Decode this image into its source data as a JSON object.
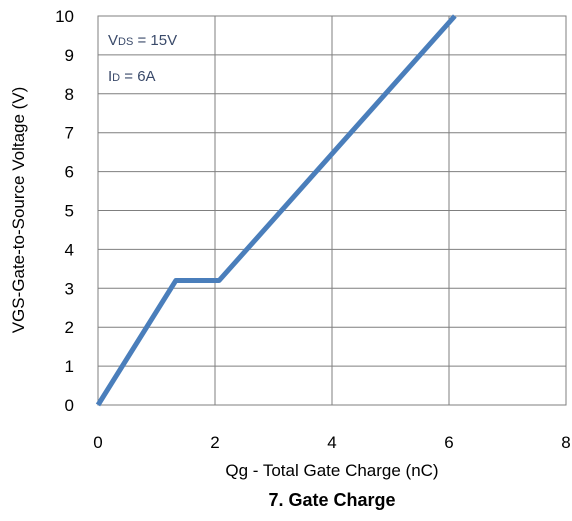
{
  "chart_data": {
    "type": "line",
    "title": "7. Gate Charge",
    "xlabel": "Qg - Total Gate Charge (nC)",
    "ylabel": "VGS-Gate-to-Source Voltage (V)",
    "xlim": [
      0,
      8
    ],
    "ylim": [
      0,
      10
    ],
    "x_ticks": [
      0,
      2,
      4,
      6,
      8
    ],
    "y_ticks": [
      0,
      1,
      2,
      3,
      4,
      5,
      6,
      7,
      8,
      9,
      10
    ],
    "grid": true,
    "series": [
      {
        "color": "#4a7ebb",
        "x": [
          0,
          1.33,
          2.07,
          6.1
        ],
        "y": [
          0,
          3.2,
          3.2,
          10
        ]
      }
    ],
    "annotations": [
      {
        "main": "V",
        "sub": "DS",
        "rest": " = 15V"
      },
      {
        "main": "I",
        "sub": "D",
        "rest": " = 6A"
      }
    ]
  }
}
